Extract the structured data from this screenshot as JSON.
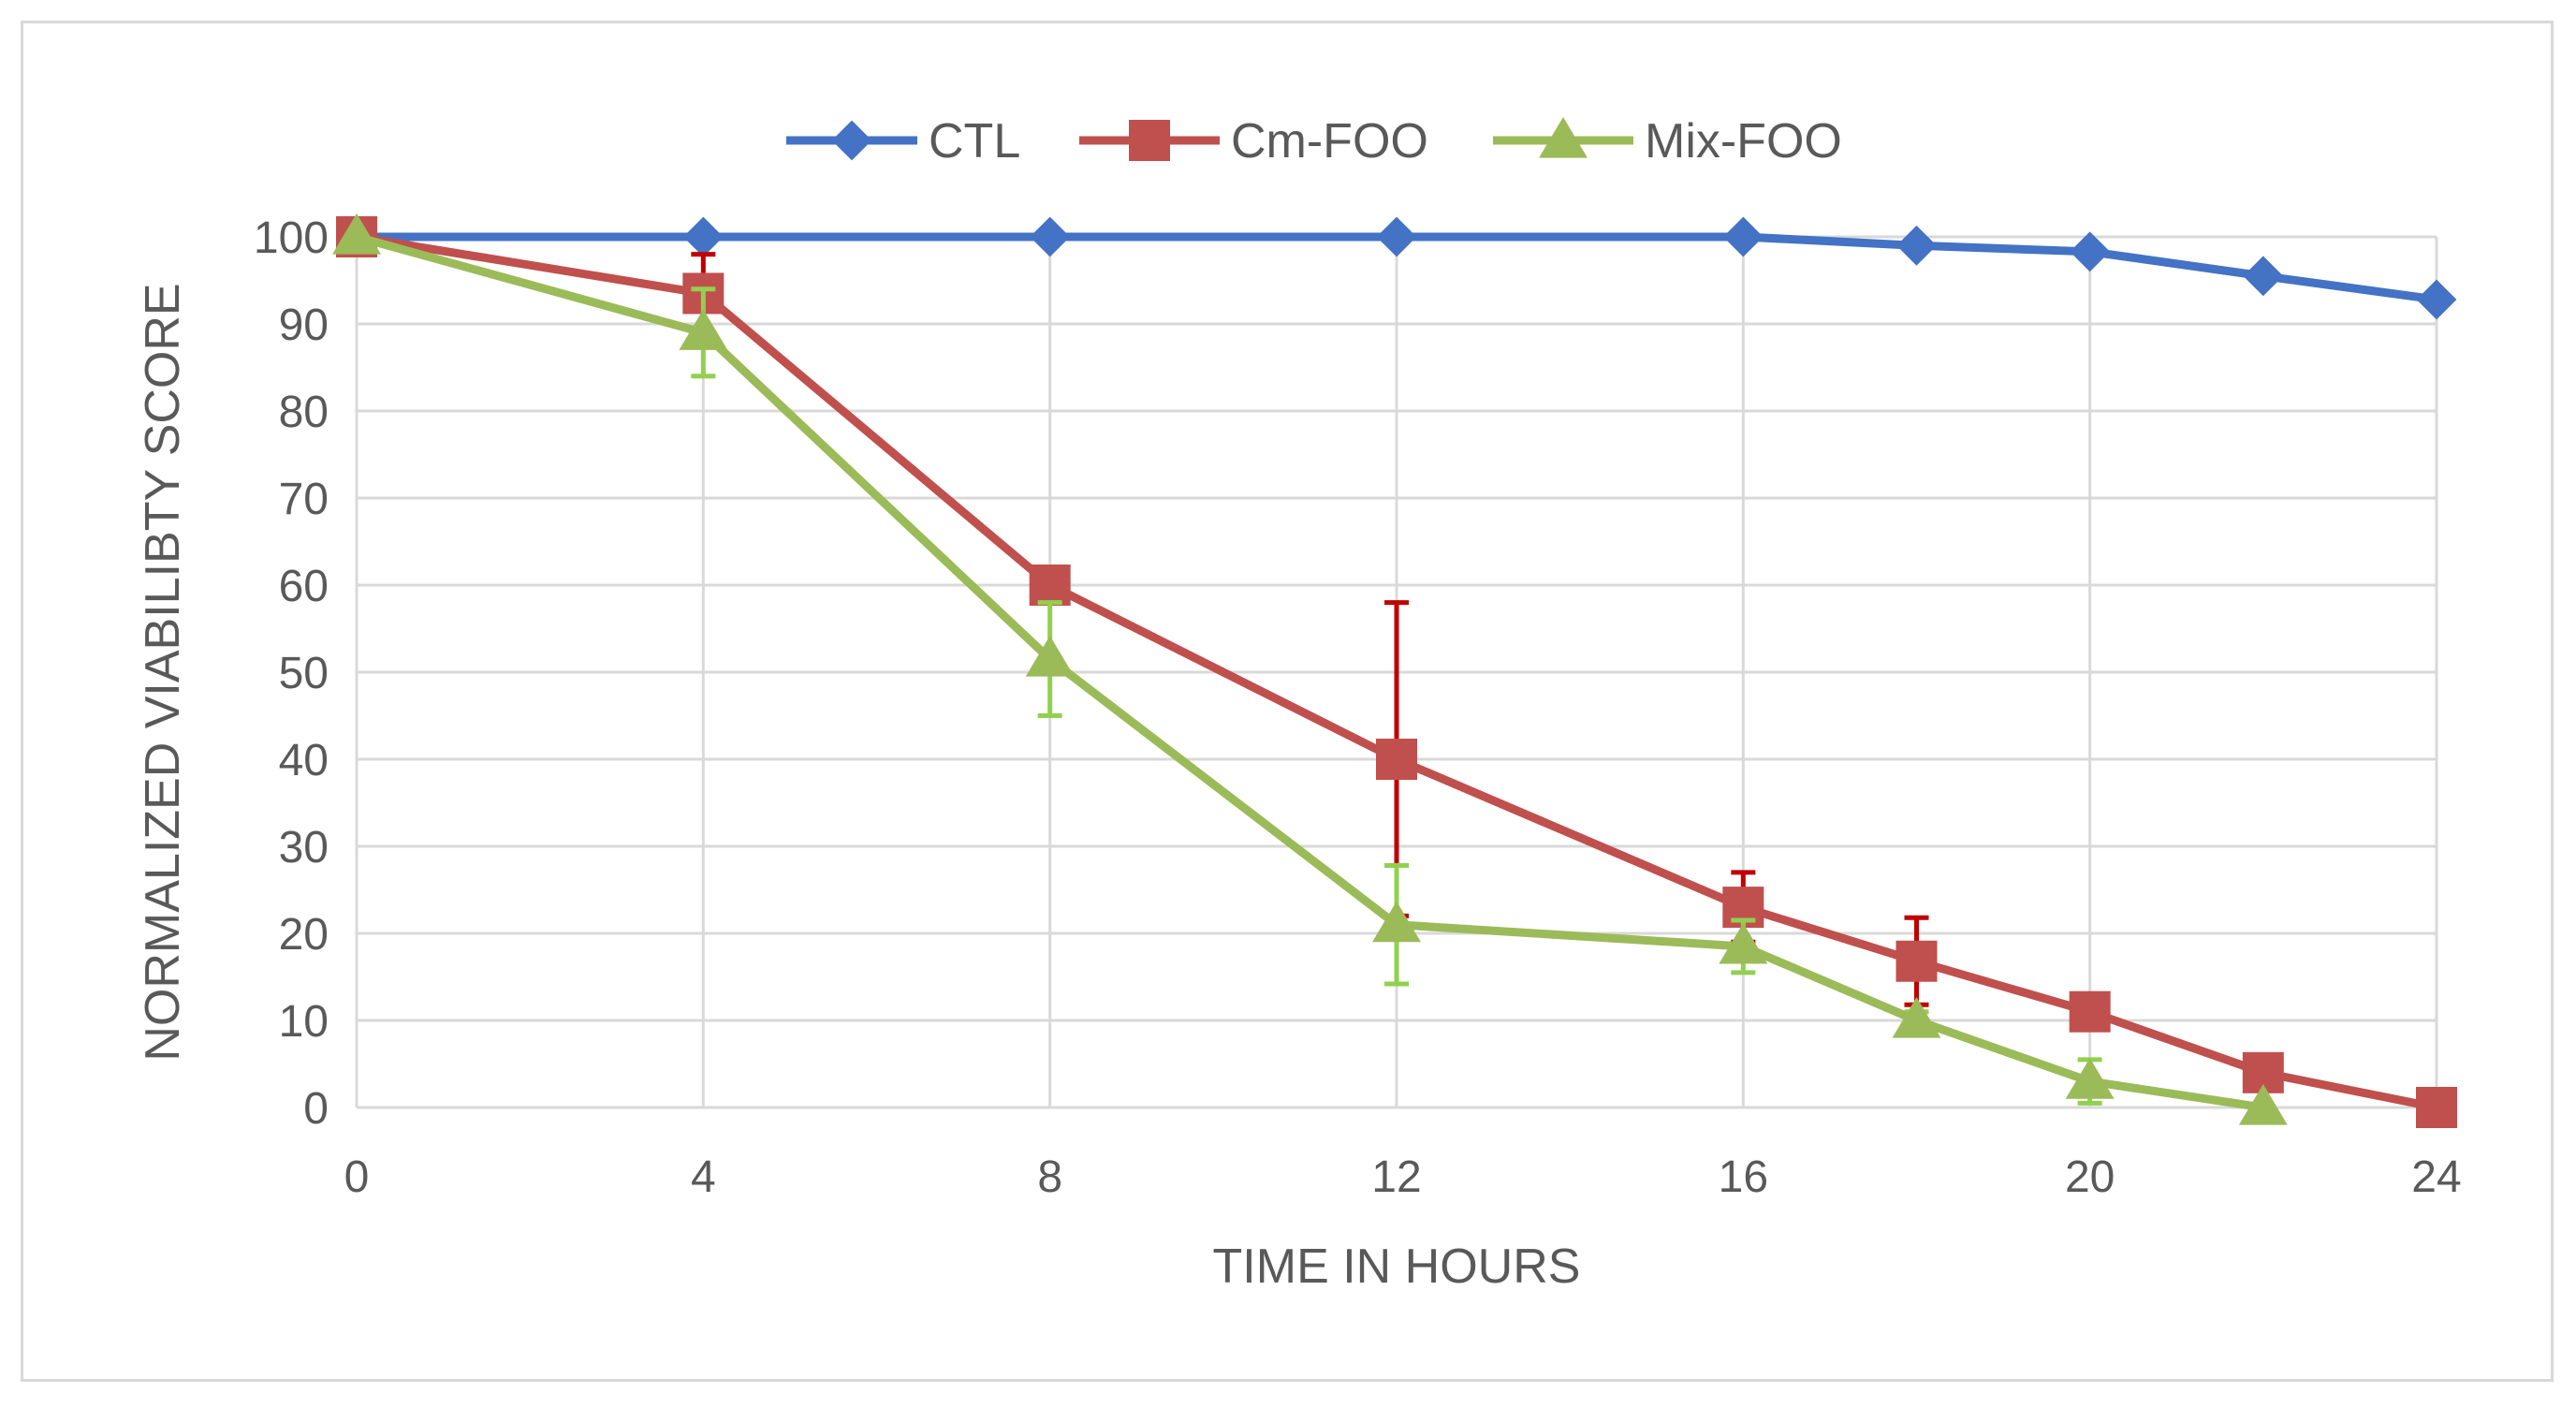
{
  "chart_data": {
    "type": "line",
    "title": "",
    "xlabel": "TIME IN HOURS",
    "ylabel": "NORMALIZED VIABILIBTY SCORE",
    "xlim": [
      0,
      24
    ],
    "ylim": [
      0,
      100
    ],
    "x_ticks": [
      0,
      4,
      8,
      12,
      16,
      20,
      24
    ],
    "y_ticks": [
      0,
      10,
      20,
      30,
      40,
      50,
      60,
      70,
      80,
      90,
      100
    ],
    "grid": true,
    "legend_position": "top-center",
    "series": [
      {
        "name": "CTL",
        "color": "#4472c4",
        "marker": "diamond",
        "x": [
          0,
          4,
          8,
          12,
          16,
          18,
          20,
          22,
          24
        ],
        "values": [
          100,
          100,
          100,
          100,
          100,
          99,
          98.3,
          95.5,
          92.8
        ],
        "error": [
          0,
          0,
          0,
          0,
          0,
          0,
          0,
          0,
          0
        ],
        "error_color": "#4472c4"
      },
      {
        "name": "Cm-FOO",
        "color": "#c0504d",
        "marker": "square",
        "x": [
          0,
          4,
          8,
          12,
          16,
          18,
          20,
          22,
          24
        ],
        "values": [
          100,
          93.5,
          60,
          40,
          23,
          16.8,
          11,
          4,
          0
        ],
        "error": [
          0,
          4.5,
          0,
          18,
          4,
          5,
          2,
          0,
          0
        ],
        "error_color": "#c00000"
      },
      {
        "name": "Mix-FOO",
        "color": "#9bbb59",
        "marker": "triangle",
        "x": [
          0,
          4,
          8,
          12,
          16,
          18,
          20,
          22
        ],
        "values": [
          100,
          89,
          51.5,
          21,
          18.5,
          10,
          3,
          0
        ],
        "error": [
          0,
          5,
          6.5,
          6.8,
          3,
          1,
          2.5,
          0
        ],
        "error_color": "#92d050"
      }
    ]
  }
}
